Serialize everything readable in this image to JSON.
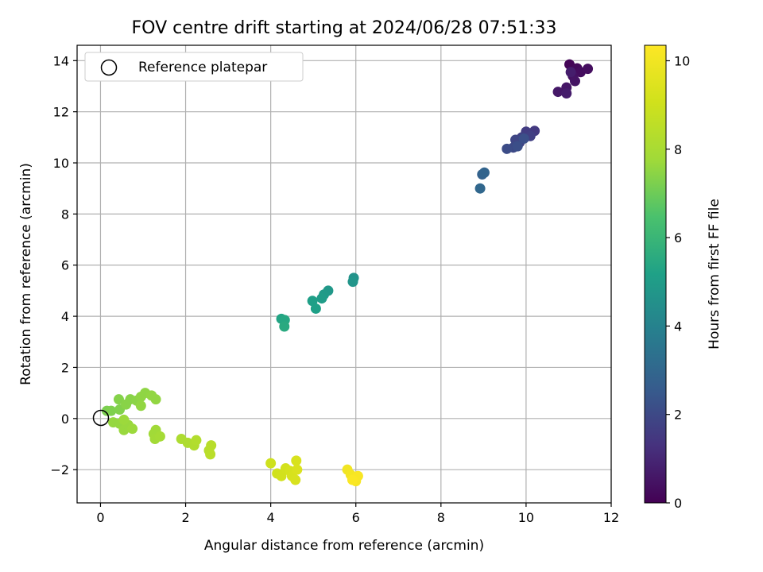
{
  "chart_data": {
    "type": "scatter",
    "title": "FOV centre drift starting at 2024/06/28 07:51:33",
    "xlabel": "Angular distance from reference (arcmin)",
    "ylabel": "Rotation from reference (arcmin)",
    "xlim": [
      -0.55,
      12
    ],
    "ylim": [
      -3.3,
      14.6
    ],
    "xticks": [
      0,
      2,
      4,
      6,
      8,
      10,
      12
    ],
    "yticks": [
      -2,
      0,
      2,
      4,
      6,
      8,
      10,
      12,
      14
    ],
    "grid": true,
    "legend": {
      "placement": "top-left",
      "entries": [
        "Reference platepar"
      ]
    },
    "reference_point": {
      "x": 0,
      "y": 0
    },
    "colorbar": {
      "label": "Hours from first FF file",
      "range": [
        0,
        10.35
      ],
      "ticks": [
        0,
        2,
        4,
        6,
        8,
        10
      ],
      "colormap": "viridis"
    },
    "points": [
      {
        "x": 11.02,
        "y": 13.85,
        "h": 0.1
      },
      {
        "x": 11.2,
        "y": 13.7,
        "h": 0.2
      },
      {
        "x": 11.28,
        "y": 13.55,
        "h": 0.3
      },
      {
        "x": 11.45,
        "y": 13.68,
        "h": 0.35
      },
      {
        "x": 11.1,
        "y": 13.4,
        "h": 0.4
      },
      {
        "x": 11.15,
        "y": 13.2,
        "h": 0.5
      },
      {
        "x": 10.95,
        "y": 12.95,
        "h": 0.55
      },
      {
        "x": 10.75,
        "y": 12.78,
        "h": 0.6
      },
      {
        "x": 10.95,
        "y": 12.72,
        "h": 0.7
      },
      {
        "x": 11.05,
        "y": 13.55,
        "h": 0.75
      },
      {
        "x": 10.2,
        "y": 11.25,
        "h": 1.5
      },
      {
        "x": 10.0,
        "y": 11.22,
        "h": 1.6
      },
      {
        "x": 10.1,
        "y": 11.05,
        "h": 1.7
      },
      {
        "x": 9.9,
        "y": 11.0,
        "h": 1.75
      },
      {
        "x": 9.85,
        "y": 10.8,
        "h": 1.8
      },
      {
        "x": 9.75,
        "y": 10.9,
        "h": 1.9
      },
      {
        "x": 9.7,
        "y": 10.6,
        "h": 2.0
      },
      {
        "x": 9.55,
        "y": 10.55,
        "h": 2.1
      },
      {
        "x": 9.8,
        "y": 10.65,
        "h": 2.15
      },
      {
        "x": 9.95,
        "y": 10.95,
        "h": 2.2
      },
      {
        "x": 8.97,
        "y": 9.55,
        "h": 2.8
      },
      {
        "x": 9.02,
        "y": 9.62,
        "h": 2.9
      },
      {
        "x": 8.92,
        "y": 9.0,
        "h": 3.0
      },
      {
        "x": 5.95,
        "y": 5.5,
        "h": 4.6
      },
      {
        "x": 5.93,
        "y": 5.35,
        "h": 4.7
      },
      {
        "x": 5.35,
        "y": 5.0,
        "h": 4.85
      },
      {
        "x": 5.25,
        "y": 4.85,
        "h": 4.9
      },
      {
        "x": 5.2,
        "y": 4.7,
        "h": 5.0
      },
      {
        "x": 4.98,
        "y": 4.6,
        "h": 5.1
      },
      {
        "x": 5.06,
        "y": 4.3,
        "h": 5.15
      },
      {
        "x": 4.25,
        "y": 3.9,
        "h": 5.3
      },
      {
        "x": 4.33,
        "y": 3.85,
        "h": 5.4
      },
      {
        "x": 4.32,
        "y": 3.6,
        "h": 5.5
      },
      {
        "x": 0.15,
        "y": 0.3,
        "h": 7.2
      },
      {
        "x": 0.25,
        "y": 0.3,
        "h": 7.25
      },
      {
        "x": 0.45,
        "y": 0.35,
        "h": 7.3
      },
      {
        "x": 0.43,
        "y": 0.75,
        "h": 7.35
      },
      {
        "x": 0.6,
        "y": 0.55,
        "h": 7.4
      },
      {
        "x": 0.7,
        "y": 0.75,
        "h": 7.4
      },
      {
        "x": 0.85,
        "y": 0.7,
        "h": 7.45
      },
      {
        "x": 0.95,
        "y": 0.85,
        "h": 7.5
      },
      {
        "x": 1.05,
        "y": 1.0,
        "h": 7.5
      },
      {
        "x": 1.2,
        "y": 0.9,
        "h": 7.55
      },
      {
        "x": 1.3,
        "y": 0.75,
        "h": 7.55
      },
      {
        "x": 0.95,
        "y": 0.5,
        "h": 7.55
      },
      {
        "x": 0.3,
        "y": -0.15,
        "h": 7.6
      },
      {
        "x": 0.45,
        "y": -0.2,
        "h": 7.6
      },
      {
        "x": 0.55,
        "y": -0.45,
        "h": 7.65
      },
      {
        "x": 0.65,
        "y": -0.25,
        "h": 7.65
      },
      {
        "x": 0.75,
        "y": -0.4,
        "h": 7.7
      },
      {
        "x": 0.55,
        "y": -0.05,
        "h": 7.7
      },
      {
        "x": 1.25,
        "y": -0.6,
        "h": 7.8
      },
      {
        "x": 1.3,
        "y": -0.45,
        "h": 7.8
      },
      {
        "x": 1.28,
        "y": -0.8,
        "h": 7.85
      },
      {
        "x": 1.4,
        "y": -0.7,
        "h": 7.9
      },
      {
        "x": 1.9,
        "y": -0.8,
        "h": 8.1
      },
      {
        "x": 2.05,
        "y": -0.95,
        "h": 8.15
      },
      {
        "x": 2.2,
        "y": -1.05,
        "h": 8.2
      },
      {
        "x": 2.25,
        "y": -0.85,
        "h": 8.25
      },
      {
        "x": 2.55,
        "y": -1.25,
        "h": 8.35
      },
      {
        "x": 2.6,
        "y": -1.05,
        "h": 8.4
      },
      {
        "x": 2.58,
        "y": -1.4,
        "h": 8.45
      },
      {
        "x": 4.0,
        "y": -1.75,
        "h": 9.0
      },
      {
        "x": 4.15,
        "y": -2.15,
        "h": 9.05
      },
      {
        "x": 4.25,
        "y": -2.25,
        "h": 9.1
      },
      {
        "x": 4.35,
        "y": -1.95,
        "h": 9.15
      },
      {
        "x": 4.45,
        "y": -2.05,
        "h": 9.2
      },
      {
        "x": 4.5,
        "y": -2.25,
        "h": 9.25
      },
      {
        "x": 4.58,
        "y": -2.4,
        "h": 9.3
      },
      {
        "x": 4.6,
        "y": -1.65,
        "h": 9.3
      },
      {
        "x": 4.62,
        "y": -2.0,
        "h": 9.35
      },
      {
        "x": 5.8,
        "y": -2.0,
        "h": 10.0
      },
      {
        "x": 5.88,
        "y": -2.2,
        "h": 10.05
      },
      {
        "x": 5.95,
        "y": -2.35,
        "h": 10.1
      },
      {
        "x": 6.0,
        "y": -2.45,
        "h": 10.15
      },
      {
        "x": 6.05,
        "y": -2.25,
        "h": 10.2
      },
      {
        "x": 5.92,
        "y": -2.4,
        "h": 10.25
      }
    ]
  }
}
